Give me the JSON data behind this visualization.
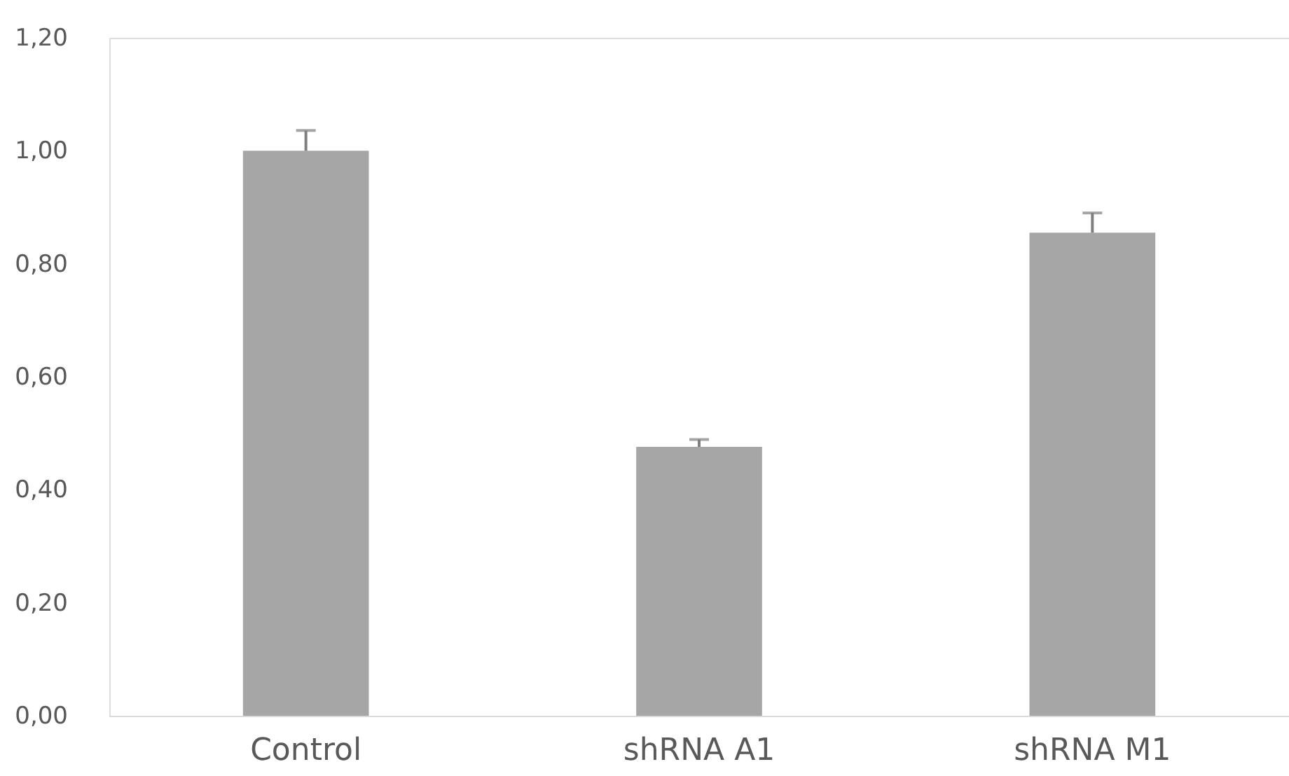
{
  "chart_data": {
    "type": "bar",
    "categories": [
      "Control",
      "shRNA A1",
      "shRNA M1"
    ],
    "values": [
      1.0,
      0.476,
      0.855
    ],
    "errors": [
      [
        1.0,
        1.036
      ],
      [
        0.476,
        0.489
      ],
      [
        0.855,
        0.89
      ]
    ],
    "color": "#a6a6a6",
    "ylim": [
      0,
      1.2
    ],
    "yticks": [
      {
        "value": 0,
        "label": "0,00"
      },
      {
        "value": 0.2,
        "label": "0,20"
      },
      {
        "value": 0.4,
        "label": "0,40"
      },
      {
        "value": 0.6,
        "label": "0,60"
      },
      {
        "value": 0.8,
        "label": "0,80"
      },
      {
        "value": 1.0,
        "label": "1,00"
      },
      {
        "value": 1.2,
        "label": "1,20"
      }
    ],
    "grid": false
  }
}
